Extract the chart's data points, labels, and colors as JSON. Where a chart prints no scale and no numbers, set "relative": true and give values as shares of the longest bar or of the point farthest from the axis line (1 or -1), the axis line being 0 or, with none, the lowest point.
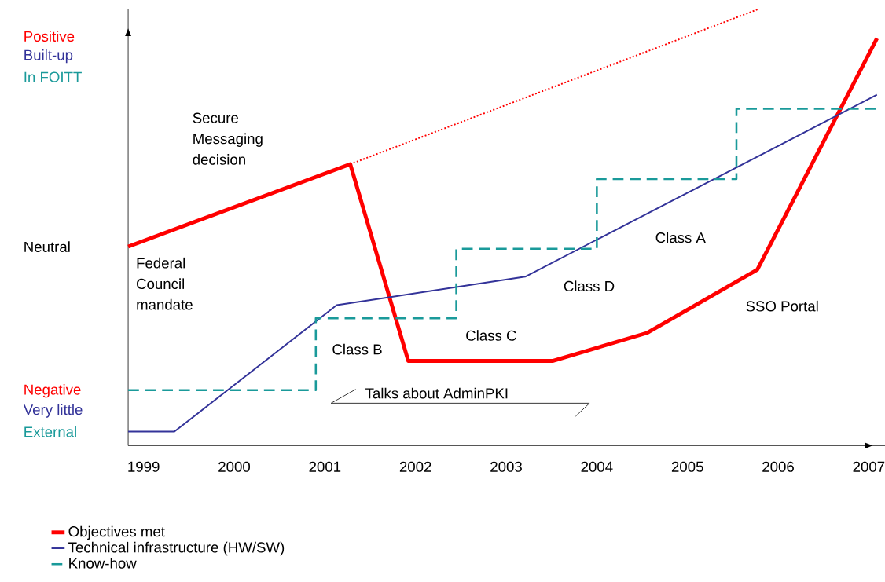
{
  "chart_data": {
    "type": "line",
    "relative": true,
    "xlim": [
      1998.83,
      2007.2
    ],
    "xticks": [
      1999,
      2000,
      2001,
      2002,
      2003,
      2004,
      2005,
      2006,
      2007
    ],
    "legend": "bottom left",
    "series": [
      {
        "name": "Objectives met",
        "color": "#ff0000",
        "line_style": "solid",
        "x": [
          1998.83,
          2001.28,
          2001.92,
          2003.51,
          2004.55,
          2005.77,
          2007.09
        ],
        "values": [
          0.456,
          0.645,
          0.194,
          0.194,
          0.258,
          0.403,
          0.933
        ]
      },
      {
        "name": "Technical infrastructure (HW/SW)",
        "color": "#333399",
        "line_style": "solid",
        "x": [
          1998.83,
          1999.34,
          2001.13,
          2003.21,
          2007.09
        ],
        "values": [
          0.032,
          0.032,
          0.322,
          0.387,
          0.804
        ]
      },
      {
        "name": "Know-how",
        "type": "step",
        "color": "#1a9a9a",
        "line_style": "dashed",
        "x": [
          1998.83,
          2000.9,
          2002.45,
          2004.0,
          2005.54,
          2007.09
        ],
        "values": [
          0.127,
          0.292,
          0.451,
          0.611,
          0.772,
          0.772
        ]
      },
      {
        "color": "#ff0000",
        "line_style": "dotted",
        "x": [
          2001.28,
          2005.78
        ],
        "values": [
          0.645,
          1.0
        ]
      }
    ],
    "annotations": [
      "Positive",
      "Built-up",
      "In FOITT",
      "Neutral",
      "Negative",
      "Very little",
      "External",
      "Secure Messaging decision",
      "Federal Council mandate",
      "Class A",
      "Class D",
      "Class C",
      "Class B",
      "SSO Portal",
      "Talks about AdminPKI"
    ]
  }
}
